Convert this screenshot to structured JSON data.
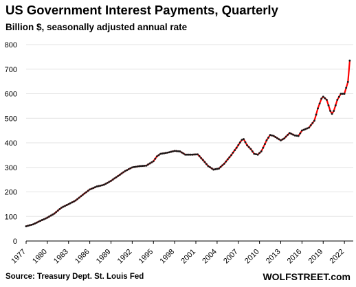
{
  "chart_data": {
    "type": "line",
    "title": "US Government  Interest Payments,  Quarterly",
    "subtitle": "Billion $, seasonally adjusted annual rate",
    "source": "Source: Treasury Dept. St. Louis Fed",
    "brand": "WOLFSTREET.com",
    "ylim": [
      0,
      800
    ],
    "yticks": [
      0,
      100,
      200,
      300,
      400,
      500,
      600,
      700,
      800
    ],
    "xlim": [
      1977,
      2023.25
    ],
    "xticks": [
      "1977",
      "1980",
      "1983",
      "1986",
      "1989",
      "1992",
      "1995",
      "1998",
      "2001",
      "2004",
      "2007",
      "2010",
      "2013",
      "2016",
      "2019",
      "2022"
    ],
    "grid": "horizontal",
    "colors": {
      "line": "#ff0000",
      "marker": "#1a1a1a",
      "grid": "#e3e3e3",
      "axis": "#000000"
    },
    "keypoints": [
      [
        1977.0,
        60
      ],
      [
        1978.0,
        68
      ],
      [
        1979.0,
        82
      ],
      [
        1980.0,
        95
      ],
      [
        1981.0,
        112
      ],
      [
        1982.0,
        136
      ],
      [
        1983.0,
        150
      ],
      [
        1984.0,
        165
      ],
      [
        1985.0,
        188
      ],
      [
        1986.0,
        210
      ],
      [
        1987.0,
        222
      ],
      [
        1988.0,
        229
      ],
      [
        1989.0,
        245
      ],
      [
        1990.0,
        265
      ],
      [
        1991.0,
        285
      ],
      [
        1992.0,
        300
      ],
      [
        1993.0,
        305
      ],
      [
        1994.0,
        307
      ],
      [
        1995.0,
        325
      ],
      [
        1995.5,
        345
      ],
      [
        1996.0,
        355
      ],
      [
        1997.0,
        360
      ],
      [
        1998.0,
        367
      ],
      [
        1998.75,
        365
      ],
      [
        1999.5,
        352
      ],
      [
        2000.5,
        352
      ],
      [
        2001.25,
        353
      ],
      [
        2002.0,
        330
      ],
      [
        2002.75,
        305
      ],
      [
        2003.5,
        291
      ],
      [
        2004.25,
        295
      ],
      [
        2005.0,
        315
      ],
      [
        2006.0,
        350
      ],
      [
        2006.75,
        380
      ],
      [
        2007.5,
        412
      ],
      [
        2007.75,
        415
      ],
      [
        2008.25,
        390
      ],
      [
        2008.75,
        375
      ],
      [
        2009.25,
        355
      ],
      [
        2009.75,
        352
      ],
      [
        2010.25,
        365
      ],
      [
        2011.0,
        410
      ],
      [
        2011.5,
        432
      ],
      [
        2012.0,
        428
      ],
      [
        2013.0,
        410
      ],
      [
        2013.5,
        418
      ],
      [
        2014.25,
        440
      ],
      [
        2015.0,
        430
      ],
      [
        2015.5,
        428
      ],
      [
        2016.0,
        450
      ],
      [
        2017.0,
        462
      ],
      [
        2017.75,
        490
      ],
      [
        2018.25,
        540
      ],
      [
        2018.75,
        580
      ],
      [
        2019.0,
        588
      ],
      [
        2019.5,
        575
      ],
      [
        2020.0,
        530
      ],
      [
        2020.25,
        518
      ],
      [
        2020.5,
        530
      ],
      [
        2021.0,
        575
      ],
      [
        2021.5,
        600
      ],
      [
        2022.0,
        600
      ],
      [
        2022.5,
        648
      ],
      [
        2022.75,
        735
      ]
    ]
  }
}
